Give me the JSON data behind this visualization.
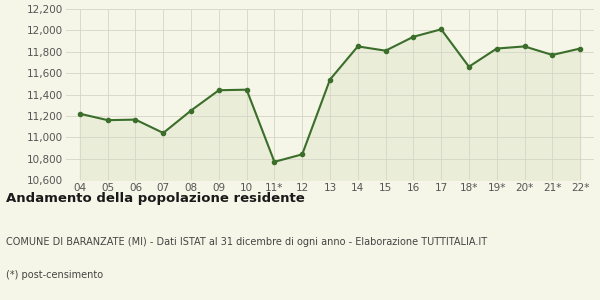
{
  "x_labels": [
    "04",
    "05",
    "06",
    "07",
    "08",
    "09",
    "10",
    "11*",
    "12",
    "13",
    "14",
    "15",
    "16",
    "17",
    "18*",
    "19*",
    "20*",
    "21*",
    "22*"
  ],
  "y_values": [
    11220,
    11160,
    11165,
    11040,
    11250,
    11440,
    11445,
    10770,
    10840,
    11540,
    11850,
    11810,
    11940,
    12010,
    11660,
    11830,
    11850,
    11770,
    11830
  ],
  "line_color": "#3a6e2a",
  "fill_color": "#eaeed9",
  "marker": "o",
  "marker_size": 3,
  "line_width": 1.5,
  "ylim": [
    10600,
    12200
  ],
  "yticks": [
    10600,
    10800,
    11000,
    11200,
    11400,
    11600,
    11800,
    12000,
    12200
  ],
  "background_color": "#f5f5e8",
  "grid_color": "#d5d5c5",
  "title": "Andamento della popolazione residente",
  "subtitle": "COMUNE DI BARANZATE (MI) - Dati ISTAT al 31 dicembre di ogni anno - Elaborazione TUTTITALIA.IT",
  "footnote": "(*) post-censimento",
  "title_fontsize": 9.5,
  "subtitle_fontsize": 7,
  "footnote_fontsize": 7,
  "tick_fontsize": 7.5
}
